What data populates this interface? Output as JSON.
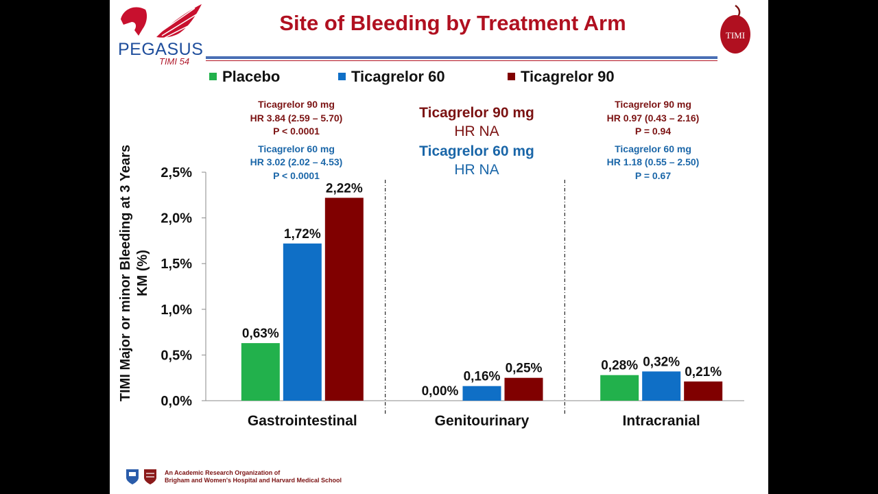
{
  "slide": {
    "title": "Site of Bleeding by Treatment Arm",
    "logo_left": {
      "word": "PEGASUS",
      "sub": "TIMI 54"
    },
    "logo_right": {
      "text": "TIMI"
    },
    "footer": {
      "line1": "An Academic Research Organization of",
      "line2": "Brigham and Women's Hospital and Harvard Medical School"
    }
  },
  "legend": [
    {
      "label": "Placebo",
      "color": "#22b14c"
    },
    {
      "label": "Ticagrelor 60",
      "color": "#0f6fc6"
    },
    {
      "label": "Ticagrelor 90",
      "color": "#800000"
    }
  ],
  "annotations": {
    "gi": {
      "t90": {
        "name": "Ticagrelor 90 mg",
        "hr": "HR 3.84 (2.59 – 5.70)",
        "p": "P < 0.0001"
      },
      "t60": {
        "name": "Ticagrelor 60 mg",
        "hr": "HR 3.02 (2.02 – 4.53)",
        "p": "P < 0.0001"
      }
    },
    "gu": {
      "t90": {
        "name": "Ticagrelor 90 mg",
        "hr": "HR NA"
      },
      "t60": {
        "name": "Ticagrelor 60 mg",
        "hr": "HR NA"
      }
    },
    "ic": {
      "t90": {
        "name": "Ticagrelor 90 mg",
        "hr": "HR 0.97 (0.43 – 2.16)",
        "p": "P = 0.94"
      },
      "t60": {
        "name": "Ticagrelor 60 mg",
        "hr": "HR 1.18 (0.55 – 2.50)",
        "p": "P = 0.67"
      }
    }
  },
  "chart_data": {
    "type": "bar",
    "title": "Site of Bleeding by Treatment Arm",
    "xlabel": "",
    "ylabel": "TIMI Major or minor Bleeding at 3 Years KM (%)",
    "categories": [
      "Gastrointestinal",
      "Genitourinary",
      "Intracranial"
    ],
    "series": [
      {
        "name": "Placebo",
        "color": "#22b14c",
        "values": [
          0.63,
          0.0,
          0.28
        ],
        "labels": [
          "0,63%",
          "0,00%",
          "0,28%"
        ]
      },
      {
        "name": "Ticagrelor 60",
        "color": "#0f6fc6",
        "values": [
          1.72,
          0.16,
          0.32
        ],
        "labels": [
          "1,72%",
          "0,16%",
          "0,32%"
        ]
      },
      {
        "name": "Ticagrelor 90",
        "color": "#800000",
        "values": [
          2.22,
          0.25,
          0.21
        ],
        "labels": [
          "2,22%",
          "0,25%",
          "0,21%"
        ]
      }
    ],
    "ylim": [
      0,
      2.5
    ],
    "yticks": [
      0,
      0.5,
      1.0,
      1.5,
      2.0,
      2.5
    ],
    "ytick_labels": [
      "0,0%",
      "0,5%",
      "1,0%",
      "1,5%",
      "2,0%",
      "2,5%"
    ],
    "grid": false,
    "legend_position": "top-left"
  }
}
